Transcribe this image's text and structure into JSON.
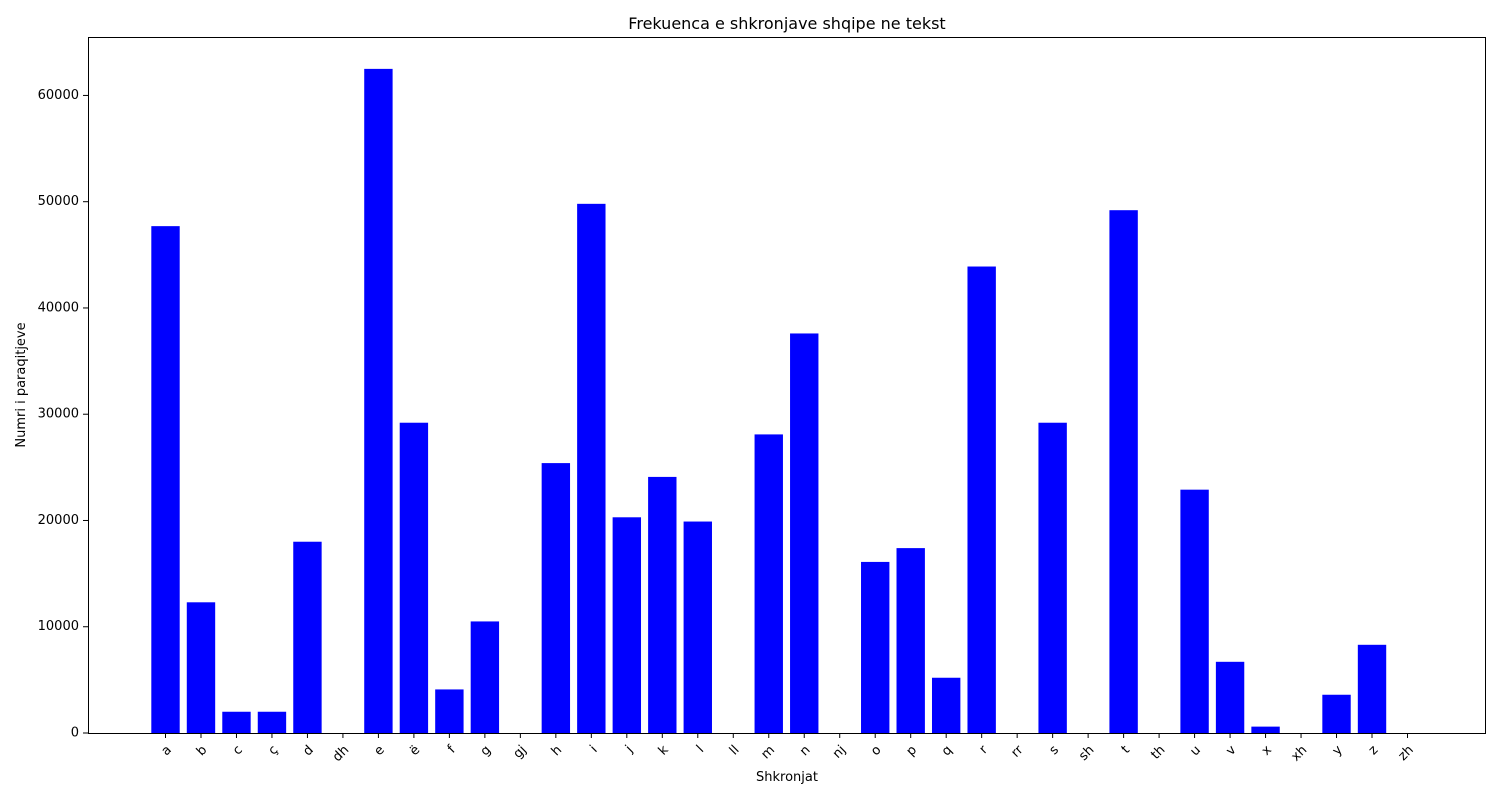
{
  "chart_data": {
    "type": "bar",
    "title": "Frekuenca e shkronjave shqipe ne tekst",
    "xlabel": "Shkronjat",
    "ylabel": "Numri i paraqitjeve",
    "categories": [
      "a",
      "b",
      "c",
      "ç",
      "d",
      "dh",
      "e",
      "ë",
      "f",
      "g",
      "gj",
      "h",
      "i",
      "j",
      "k",
      "l",
      "ll",
      "m",
      "n",
      "nj",
      "o",
      "p",
      "q",
      "r",
      "rr",
      "s",
      "sh",
      "t",
      "th",
      "u",
      "v",
      "x",
      "xh",
      "y",
      "z",
      "zh"
    ],
    "values": [
      47700,
      12300,
      2000,
      2000,
      18000,
      0,
      62500,
      29200,
      4100,
      10500,
      0,
      25400,
      49800,
      20300,
      24100,
      19900,
      0,
      28100,
      37600,
      0,
      16100,
      17400,
      5200,
      43900,
      0,
      29200,
      0,
      49200,
      0,
      22900,
      6700,
      600,
      0,
      3600,
      8300,
      0
    ],
    "ylim": [
      0,
      65500
    ],
    "yticks": [
      0,
      10000,
      20000,
      30000,
      40000,
      50000,
      60000
    ],
    "bar_color": "#0000ff",
    "grid": false,
    "legend": "none",
    "xtick_rotation": -45
  }
}
